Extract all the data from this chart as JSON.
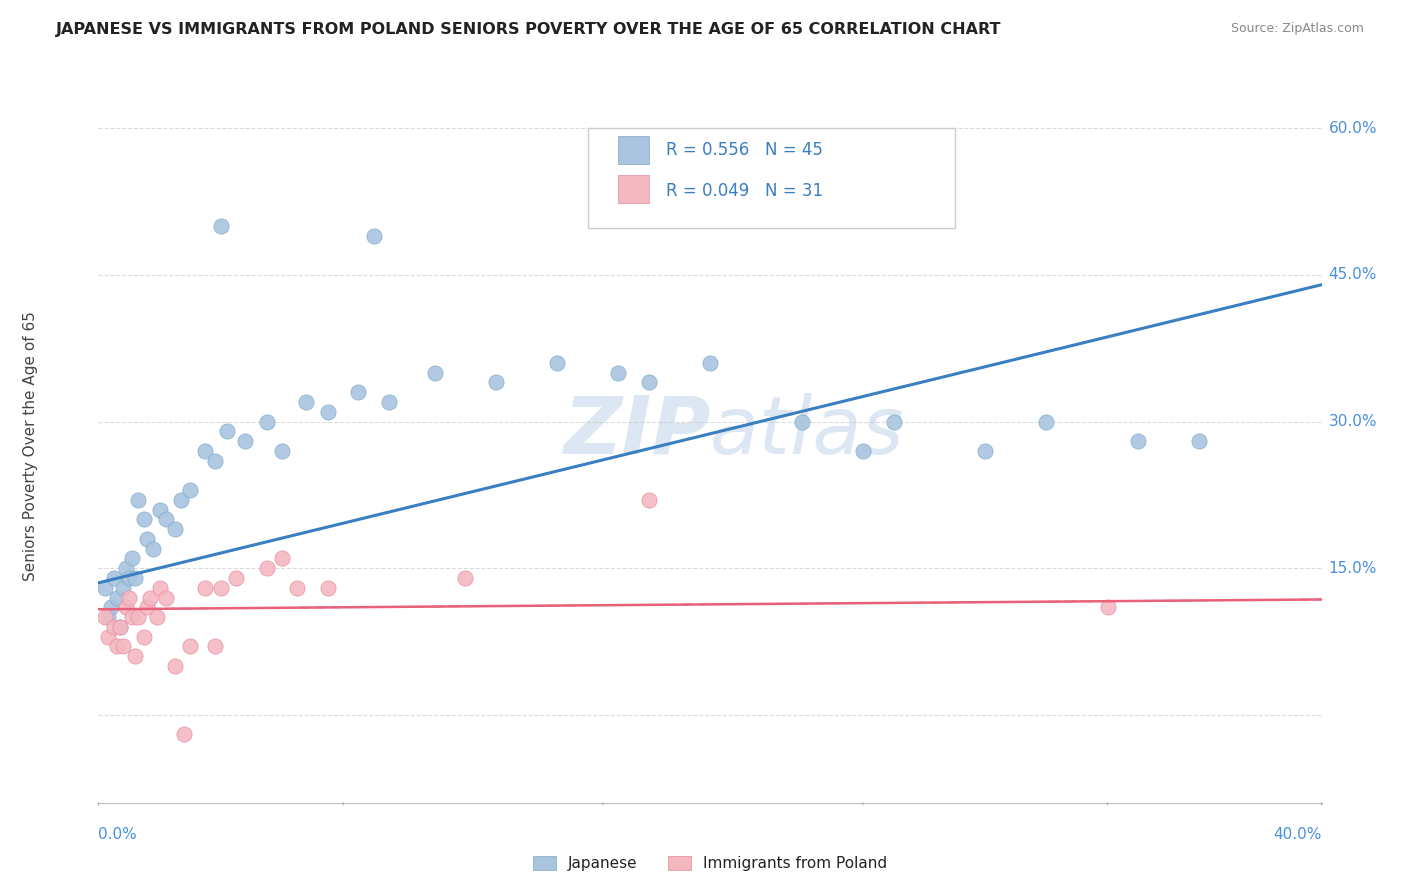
{
  "title": "JAPANESE VS IMMIGRANTS FROM POLAND SENIORS POVERTY OVER THE AGE OF 65 CORRELATION CHART",
  "source": "Source: ZipAtlas.com",
  "ylabel": "Seniors Poverty Over the Age of 65",
  "yticks": [
    0.0,
    0.15,
    0.3,
    0.45,
    0.6
  ],
  "ytick_labels": [
    "",
    "15.0%",
    "30.0%",
    "45.0%",
    "60.0%"
  ],
  "xlim": [
    0.0,
    0.4
  ],
  "ylim": [
    -0.09,
    0.64
  ],
  "legend_r1": "R = 0.556",
  "legend_n1": "N = 45",
  "legend_r2": "R = 0.049",
  "legend_n2": "N = 31",
  "japanese_color": "#aac4e0",
  "poland_color": "#f4b8c1",
  "japanese_edge": "#7aaac8",
  "poland_edge": "#e888a0",
  "trendline_blue": "#3a7fc1",
  "trendline_pink": "#e8607a",
  "watermark_color": "#c5d8ec",
  "title_color": "#222222",
  "source_color": "#888888",
  "axis_label_color": "#4a90d9",
  "ylabel_color": "#444444",
  "grid_color": "#cccccc",
  "legend_text_color": "#3a7fc1",
  "legend_label_color": "#222222",
  "japanese_x": [
    0.002,
    0.003,
    0.004,
    0.005,
    0.006,
    0.007,
    0.008,
    0.009,
    0.01,
    0.011,
    0.012,
    0.013,
    0.015,
    0.016,
    0.018,
    0.02,
    0.022,
    0.025,
    0.027,
    0.03,
    0.035,
    0.038,
    0.042,
    0.048,
    0.055,
    0.06,
    0.068,
    0.075,
    0.085,
    0.095,
    0.11,
    0.13,
    0.15,
    0.17,
    0.2,
    0.23,
    0.26,
    0.29,
    0.31,
    0.34,
    0.36,
    0.09,
    0.04,
    0.18,
    0.25
  ],
  "japanese_y": [
    0.13,
    0.1,
    0.11,
    0.14,
    0.12,
    0.09,
    0.13,
    0.15,
    0.14,
    0.16,
    0.14,
    0.22,
    0.2,
    0.18,
    0.17,
    0.21,
    0.2,
    0.19,
    0.22,
    0.23,
    0.27,
    0.26,
    0.29,
    0.28,
    0.3,
    0.27,
    0.32,
    0.31,
    0.33,
    0.32,
    0.35,
    0.34,
    0.36,
    0.35,
    0.36,
    0.3,
    0.3,
    0.27,
    0.3,
    0.28,
    0.28,
    0.49,
    0.5,
    0.34,
    0.27
  ],
  "poland_x": [
    0.002,
    0.003,
    0.005,
    0.006,
    0.007,
    0.008,
    0.009,
    0.01,
    0.011,
    0.012,
    0.013,
    0.015,
    0.016,
    0.017,
    0.019,
    0.02,
    0.022,
    0.025,
    0.028,
    0.03,
    0.035,
    0.038,
    0.04,
    0.045,
    0.055,
    0.06,
    0.065,
    0.075,
    0.12,
    0.18,
    0.33
  ],
  "poland_y": [
    0.1,
    0.08,
    0.09,
    0.07,
    0.09,
    0.07,
    0.11,
    0.12,
    0.1,
    0.06,
    0.1,
    0.08,
    0.11,
    0.12,
    0.1,
    0.13,
    0.12,
    0.05,
    -0.02,
    0.07,
    0.13,
    0.07,
    0.13,
    0.14,
    0.15,
    0.16,
    0.13,
    0.13,
    0.14,
    0.22,
    0.11
  ],
  "trendline_j_x0": 0.0,
  "trendline_j_y0": 0.135,
  "trendline_j_x1": 0.4,
  "trendline_j_y1": 0.44,
  "trendline_p_x0": 0.0,
  "trendline_p_y0": 0.108,
  "trendline_p_x1": 0.4,
  "trendline_p_y1": 0.118
}
